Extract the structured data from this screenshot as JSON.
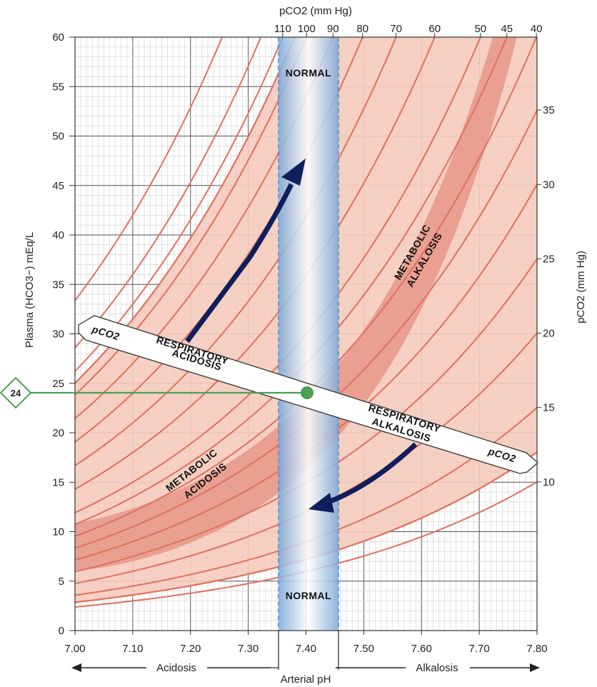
{
  "chart_data": {
    "type": "diagram",
    "title": "",
    "top_axis_title": "pCO2 (mm Hg)",
    "right_axis_title": "pCO2 (mm Hg)",
    "left_axis_title": "Plasma (HCO3−) mEq/L",
    "bottom_axis_title": "Arterial pH",
    "x_range": [
      7.0,
      7.8
    ],
    "y_range": [
      0,
      60
    ],
    "x_ticks": [
      "7.00",
      "7.10",
      "7.20",
      "7.30",
      "7.40",
      "7.50",
      "7.60",
      "7.70",
      "7.80"
    ],
    "y_ticks": [
      "0",
      "5",
      "10",
      "15",
      "20",
      "25",
      "30",
      "35",
      "40",
      "45",
      "50",
      "55",
      "60"
    ],
    "top_ticks": [
      "110",
      "100",
      "90",
      "80",
      "70",
      "60",
      "50",
      "45",
      "40"
    ],
    "right_ticks": [
      "10",
      "15",
      "20",
      "25",
      "30",
      "35"
    ],
    "normal_ph_band": [
      7.35,
      7.45
    ],
    "normal_label": "NORMAL",
    "normal_bicarbonate": 24,
    "normal_bicarbonate_label": "24",
    "direction_labels": {
      "acidosis": "Acidosis",
      "alkalosis": "Alkalosis"
    },
    "regions": {
      "metabolic_alkalosis": [
        "METABOLIC",
        "ALKALOSIS"
      ],
      "metabolic_acidosis": [
        "METABOLIC",
        "ACIDOSIS"
      ],
      "respiratory_acidosis": [
        "RESPIRATORY",
        "ACIDOSIS"
      ],
      "respiratory_alkalosis": [
        "RESPIRATORY",
        "ALKALOSIS"
      ]
    },
    "pco2_arrow_labels": {
      "left": "pCO2",
      "right": "pCO2"
    },
    "isobar_pco2_values": [
      10,
      15,
      20,
      25,
      30,
      35,
      40,
      45,
      50,
      60,
      70,
      80,
      90,
      100,
      110,
      120,
      140
    ],
    "colors": {
      "band": "#f4cbbd",
      "metabolic_band": "#e9a090",
      "isobar": "#e07060",
      "normal_band": "#9ec3e6",
      "arrow": "#0f1e5c",
      "baseline": "#4aa052",
      "grid": "#c8c8c8"
    }
  }
}
